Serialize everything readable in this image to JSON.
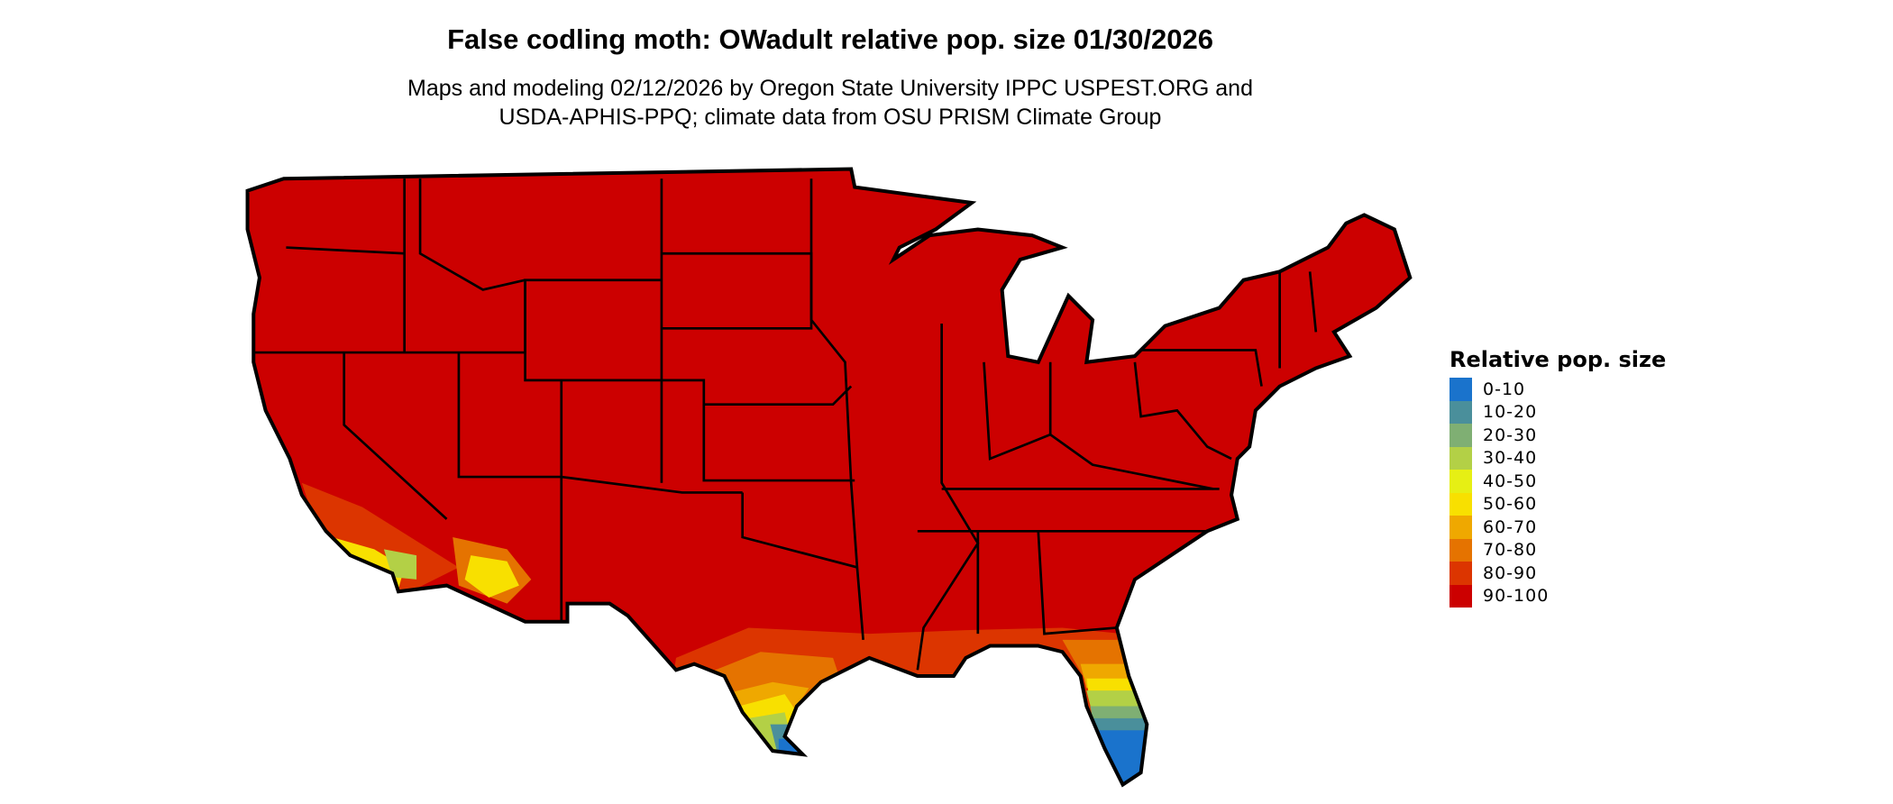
{
  "title": "False codling moth: OWadult relative pop. size 01/30/2026",
  "subtitle_line1": "Maps and modeling 02/12/2026 by Oregon State University IPPC USPEST.ORG and",
  "subtitle_line2": "USDA-APHIS-PPQ; climate data from OSU PRISM Climate Group",
  "map": {
    "region": "Contiguous United States",
    "dominant_class": "90-100",
    "notes_visible_low_classes": [
      "South Texas",
      "Florida peninsula",
      "Southern California",
      "Southern Arizona"
    ]
  },
  "legend": {
    "title": "Relative pop. size",
    "items": [
      {
        "label": "0-10",
        "color": "#1a73cc"
      },
      {
        "label": "10-20",
        "color": "#4a8f9b"
      },
      {
        "label": "20-30",
        "color": "#7faf73"
      },
      {
        "label": "30-40",
        "color": "#b3d046"
      },
      {
        "label": "40-50",
        "color": "#e6ef14"
      },
      {
        "label": "50-60",
        "color": "#f8e000"
      },
      {
        "label": "60-70",
        "color": "#efa800"
      },
      {
        "label": "70-80",
        "color": "#e57300"
      },
      {
        "label": "80-90",
        "color": "#dc3500"
      },
      {
        "label": "90-100",
        "color": "#cc0000"
      }
    ]
  }
}
